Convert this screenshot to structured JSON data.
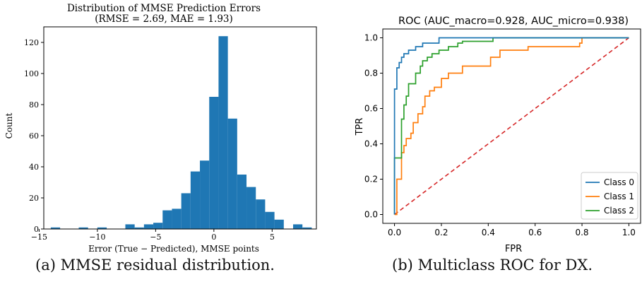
{
  "colors": {
    "hist_fill": "#1f77b4",
    "class0": "#1f77b4",
    "class1": "#ff7f0e",
    "class2": "#2ca02c",
    "diagonal": "#d62728"
  },
  "captions": {
    "a": "(a) MMSE residual distribution.",
    "b": "(b) Multiclass ROC for DX."
  },
  "chart_data": [
    {
      "type": "bar",
      "title": "Distribution of MMSE Prediction Errors",
      "subtitle": "(RMSE = 2.69, MAE = 1.93)",
      "xlabel": "Error (True − Predicted), MMSE points",
      "ylabel": "Count",
      "xlim": [
        -14.6,
        8.8
      ],
      "ylim": [
        0,
        130
      ],
      "xticks": [
        -15,
        -10,
        -5,
        0,
        5
      ],
      "xtick_labels": [
        "−15",
        "−10",
        "−5",
        "0",
        "5"
      ],
      "yticks": [
        0,
        20,
        40,
        60,
        80,
        100,
        120
      ],
      "bin_edges": [
        -14.0,
        -13.2,
        -12.4,
        -11.6,
        -10.8,
        -10.0,
        -9.2,
        -8.4,
        -7.6,
        -6.8,
        -6.0,
        -5.2,
        -4.4,
        -3.6,
        -2.8,
        -2.0,
        -1.2,
        -0.4,
        0.4,
        1.2,
        2.0,
        2.8,
        3.6,
        4.4,
        5.2,
        6.0,
        6.8,
        7.6,
        8.4
      ],
      "counts": [
        1,
        0,
        0,
        1,
        0,
        1,
        0,
        0,
        3,
        1,
        3,
        4,
        12,
        13,
        23,
        37,
        44,
        85,
        124,
        71,
        35,
        27,
        19,
        11,
        6,
        0,
        3,
        1
      ]
    },
    {
      "type": "line",
      "title": "ROC (AUC_macro=0.928, AUC_micro=0.938)",
      "xlabel": "FPR",
      "ylabel": "TPR",
      "xlim": [
        -0.05,
        1.05
      ],
      "ylim": [
        -0.05,
        1.05
      ],
      "xticks": [
        0.0,
        0.2,
        0.4,
        0.6,
        0.8,
        1.0
      ],
      "xtick_labels": [
        "0.0",
        "0.2",
        "0.4",
        "0.6",
        "0.8",
        "1.0"
      ],
      "yticks": [
        0.0,
        0.2,
        0.4,
        0.6,
        0.8,
        1.0
      ],
      "ytick_labels": [
        "0.0",
        "0.2",
        "0.4",
        "0.6",
        "0.8",
        "1.0"
      ],
      "legend_position": "lower-right",
      "series": [
        {
          "name": "Class 0",
          "x": [
            0.0,
            0.0,
            0.01,
            0.01,
            0.02,
            0.02,
            0.03,
            0.03,
            0.04,
            0.04,
            0.06,
            0.06,
            0.09,
            0.09,
            0.12,
            0.12,
            0.19,
            0.19,
            0.43,
            0.43,
            1.0
          ],
          "y": [
            0.0,
            0.71,
            0.71,
            0.83,
            0.83,
            0.86,
            0.86,
            0.89,
            0.89,
            0.91,
            0.91,
            0.93,
            0.93,
            0.95,
            0.95,
            0.97,
            0.97,
            1.0,
            1.0,
            1.0,
            1.0
          ]
        },
        {
          "name": "Class 1",
          "x": [
            0.0,
            0.01,
            0.01,
            0.03,
            0.03,
            0.04,
            0.04,
            0.05,
            0.05,
            0.07,
            0.07,
            0.08,
            0.08,
            0.1,
            0.1,
            0.12,
            0.12,
            0.13,
            0.13,
            0.15,
            0.15,
            0.17,
            0.17,
            0.2,
            0.2,
            0.23,
            0.23,
            0.29,
            0.29,
            0.41,
            0.41,
            0.45,
            0.45,
            0.57,
            0.57,
            0.79,
            0.79,
            0.8,
            0.8,
            1.0
          ],
          "y": [
            0.0,
            0.0,
            0.2,
            0.2,
            0.35,
            0.35,
            0.39,
            0.39,
            0.43,
            0.43,
            0.46,
            0.46,
            0.52,
            0.52,
            0.57,
            0.57,
            0.61,
            0.61,
            0.67,
            0.67,
            0.7,
            0.7,
            0.72,
            0.72,
            0.77,
            0.77,
            0.8,
            0.8,
            0.84,
            0.84,
            0.89,
            0.89,
            0.93,
            0.93,
            0.95,
            0.95,
            0.97,
            0.97,
            1.0,
            1.0
          ]
        },
        {
          "name": "Class 2",
          "x": [
            0.0,
            0.0,
            0.03,
            0.03,
            0.04,
            0.04,
            0.05,
            0.05,
            0.06,
            0.06,
            0.09,
            0.09,
            0.11,
            0.11,
            0.12,
            0.12,
            0.14,
            0.14,
            0.16,
            0.16,
            0.19,
            0.19,
            0.23,
            0.23,
            0.27,
            0.27,
            0.29,
            0.29,
            0.42,
            0.42,
            1.0
          ],
          "y": [
            0.0,
            0.32,
            0.32,
            0.54,
            0.54,
            0.62,
            0.62,
            0.67,
            0.67,
            0.74,
            0.74,
            0.8,
            0.8,
            0.84,
            0.84,
            0.87,
            0.87,
            0.89,
            0.89,
            0.91,
            0.91,
            0.93,
            0.93,
            0.95,
            0.95,
            0.97,
            0.97,
            0.98,
            0.98,
            1.0,
            1.0
          ]
        }
      ],
      "reference_line": {
        "x": [
          0.0,
          1.0
        ],
        "y": [
          0.0,
          1.0
        ],
        "style": "dashed"
      }
    }
  ]
}
